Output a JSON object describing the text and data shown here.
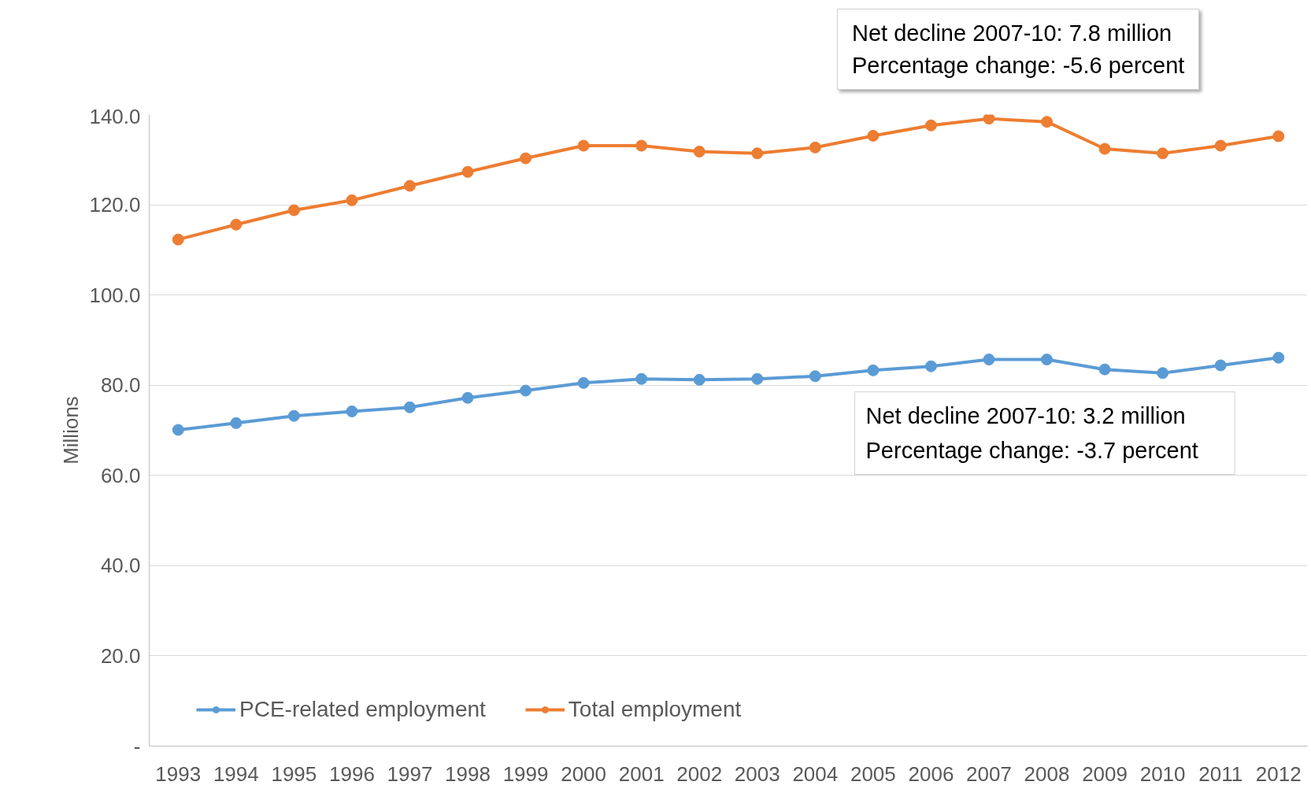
{
  "chart_data": {
    "type": "line",
    "ylabel": "Millions",
    "categories": [
      "1993",
      "1994",
      "1995",
      "1996",
      "1997",
      "1998",
      "1999",
      "2000",
      "2001",
      "2002",
      "2003",
      "2004",
      "2005",
      "2006",
      "2007",
      "2008",
      "2009",
      "2010",
      "2011",
      "2012"
    ],
    "series": [
      {
        "name": "PCE-related employment",
        "color": "#5b9bd5",
        "values": [
          70.1,
          71.6,
          73.2,
          74.2,
          75.1,
          77.2,
          78.8,
          80.5,
          81.4,
          81.2,
          81.4,
          82.0,
          83.3,
          84.2,
          85.7,
          85.7,
          83.5,
          82.7,
          84.4,
          86.1
        ]
      },
      {
        "name": "Total employment",
        "color": "#ed7d31",
        "values": [
          112.3,
          115.6,
          118.8,
          121.0,
          124.2,
          127.3,
          130.3,
          133.1,
          133.1,
          131.8,
          131.4,
          132.7,
          135.3,
          137.6,
          139.1,
          138.4,
          132.4,
          131.4,
          133.1,
          135.2
        ]
      }
    ],
    "ylim": [
      0,
      140
    ],
    "yticks": [
      {
        "value": 0,
        "label": "-"
      },
      {
        "value": 20,
        "label": "20.0"
      },
      {
        "value": 40,
        "label": "40.0"
      },
      {
        "value": 60,
        "label": "60.0"
      },
      {
        "value": 80,
        "label": "80.0"
      },
      {
        "value": 100,
        "label": "100.0"
      },
      {
        "value": 120,
        "label": "120.0"
      },
      {
        "value": 140,
        "label": "140.0"
      }
    ],
    "grid": "y",
    "legend": "bottom left",
    "marker": "circle",
    "line_style": "solid",
    "annotations": [
      "Net decline 2007-10:    7.8 million\nPercentage change:     -5.6 percent",
      "Net decline 2007-10:    3.2 million\nPercentage change:     -3.7 percent"
    ]
  }
}
